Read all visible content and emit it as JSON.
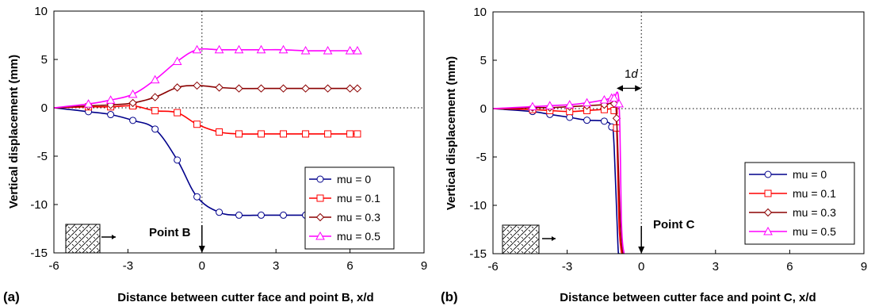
{
  "chart_data": [
    {
      "type": "line",
      "panel_label": "(a)",
      "xlabel": "Distance between cutter face and point B, x/d",
      "ylabel": "Vertical displacement (mm)",
      "xlim": [
        -6,
        9
      ],
      "ylim": [
        -15,
        10
      ],
      "xticks": [
        -6,
        -3,
        0,
        3,
        6,
        9
      ],
      "yticks": [
        10,
        5,
        0,
        -5,
        -10,
        -15
      ],
      "reference_lines": {
        "x": 0,
        "y": 0,
        "style": "dotted"
      },
      "annotation": {
        "text": "Point B",
        "arrow_to_x": 0
      },
      "legend_position": "bottom-right",
      "series": [
        {
          "name": "mu = 0",
          "color": "#00008B",
          "marker": "circle",
          "x": [
            -6,
            -4.6,
            -3.7,
            -2.8,
            -1.9,
            -1.0,
            -0.2,
            0.7,
            1.5,
            2.4,
            3.3,
            4.2,
            5.1,
            6.0,
            6.3
          ],
          "y": [
            0,
            -0.4,
            -0.7,
            -1.3,
            -2.2,
            -5.4,
            -9.2,
            -10.8,
            -11.1,
            -11.1,
            -11.1,
            -11.1,
            -11.1,
            -11.1,
            -11.1
          ]
        },
        {
          "name": "mu = 0.1",
          "color": "#FF0000",
          "marker": "square",
          "x": [
            -6,
            -4.6,
            -3.7,
            -2.8,
            -1.9,
            -1.0,
            -0.2,
            0.7,
            1.5,
            2.4,
            3.3,
            4.2,
            5.1,
            6.0,
            6.3
          ],
          "y": [
            0,
            0.1,
            0.1,
            0.2,
            -0.3,
            -0.5,
            -1.7,
            -2.5,
            -2.7,
            -2.7,
            -2.7,
            -2.7,
            -2.7,
            -2.7,
            -2.7
          ]
        },
        {
          "name": "mu = 0.3",
          "color": "#8B0000",
          "marker": "diamond",
          "x": [
            -6,
            -4.6,
            -3.7,
            -2.8,
            -1.9,
            -1.0,
            -0.2,
            0.7,
            1.5,
            2.4,
            3.3,
            4.2,
            5.1,
            6.0,
            6.3
          ],
          "y": [
            0,
            0.2,
            0.3,
            0.5,
            1.1,
            2.1,
            2.3,
            2.1,
            2.0,
            2.0,
            2.0,
            2.0,
            2.0,
            2.0,
            2.0
          ]
        },
        {
          "name": "mu = 0.5",
          "color": "#FF00FF",
          "marker": "triangle",
          "x": [
            -6,
            -4.6,
            -3.7,
            -2.8,
            -1.9,
            -1.0,
            -0.2,
            0.7,
            1.5,
            2.4,
            3.3,
            4.2,
            5.1,
            6.0,
            6.3
          ],
          "y": [
            0,
            0.4,
            0.8,
            1.4,
            2.9,
            4.8,
            6.0,
            6.0,
            6.0,
            6.0,
            6.0,
            5.9,
            5.9,
            5.9,
            5.9
          ]
        }
      ]
    },
    {
      "type": "line",
      "panel_label": "(b)",
      "xlabel": "Distance between cutter face and point C, x/d",
      "ylabel": "Vertical displacement (mm)",
      "xlim": [
        -6,
        9
      ],
      "ylim": [
        -15,
        10
      ],
      "xticks": [
        -6,
        -3,
        0,
        3,
        6,
        9
      ],
      "yticks": [
        10,
        5,
        0,
        -5,
        -10,
        -15
      ],
      "reference_lines": {
        "x": 0,
        "y": 0,
        "style": "dotted"
      },
      "annotation": {
        "text": "Point C",
        "arrow_to_x": 0
      },
      "dimension_label": {
        "prefix": "1",
        "italic": "d",
        "from_x": -1,
        "to_x": 0,
        "y": 2.1
      },
      "legend_position": "bottom-right",
      "series": [
        {
          "name": "mu = 0",
          "color": "#00008B",
          "marker": "circle",
          "x": [
            -6,
            -4.4,
            -3.7,
            -2.9,
            -2.2,
            -1.5,
            -1.2,
            -1.1,
            -0.95,
            -0.9
          ],
          "y": [
            0,
            -0.3,
            -0.6,
            -0.9,
            -1.2,
            -1.3,
            -1.9,
            -4.0,
            -14.0,
            -15.0
          ]
        },
        {
          "name": "mu = 0.1",
          "color": "#FF0000",
          "marker": "square",
          "x": [
            -6,
            -4.4,
            -3.7,
            -2.9,
            -2.2,
            -1.5,
            -1.1,
            -1.0,
            -0.9,
            -0.8
          ],
          "y": [
            0,
            -0.1,
            -0.2,
            -0.3,
            -0.2,
            -0.1,
            -0.2,
            -2.0,
            -12.0,
            -15.0
          ]
        },
        {
          "name": "mu = 0.3",
          "color": "#8B0000",
          "marker": "diamond",
          "x": [
            -6,
            -4.4,
            -3.7,
            -2.9,
            -2.2,
            -1.5,
            -1.1,
            -1.0,
            -0.85,
            -0.75
          ],
          "y": [
            0,
            0.1,
            0.1,
            0.2,
            0.3,
            0.4,
            0.5,
            -1.0,
            -12.0,
            -15.0
          ]
        },
        {
          "name": "mu = 0.5",
          "color": "#FF00FF",
          "marker": "triangle",
          "x": [
            -6,
            -4.4,
            -3.7,
            -2.9,
            -2.2,
            -1.5,
            -1.2,
            -1.1,
            -0.9,
            -0.8,
            -0.7
          ],
          "y": [
            0,
            0.2,
            0.3,
            0.4,
            0.6,
            0.9,
            1.1,
            1.1,
            0.5,
            -12.0,
            -15.0
          ]
        }
      ]
    }
  ]
}
